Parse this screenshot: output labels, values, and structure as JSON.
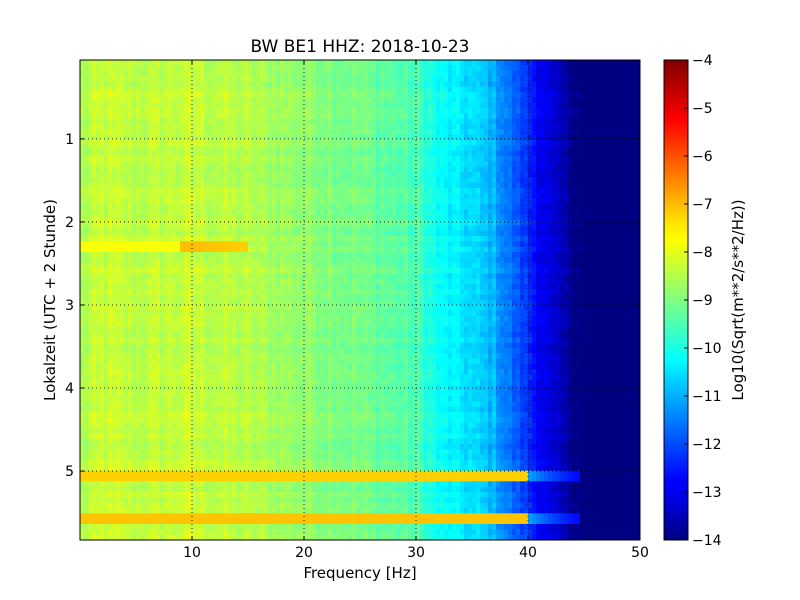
{
  "chart_data": {
    "type": "heatmap",
    "title": "BW BE1 HHZ: 2018-10-23",
    "xlabel": "Frequency [Hz]",
    "ylabel": "Lokalzeit (UTC + 2 Stunde)",
    "xlim": [
      0,
      50
    ],
    "ylim": [
      5.83,
      0.05
    ],
    "y_inverted": true,
    "grid": true,
    "xticks": [
      10,
      20,
      30,
      40,
      50
    ],
    "xtick_labels": [
      "10",
      "20",
      "30",
      "40",
      "50"
    ],
    "yticks": [
      1,
      2,
      3,
      4,
      5
    ],
    "ytick_labels": [
      "1",
      "2",
      "3",
      "4",
      "5"
    ],
    "colormap": "jet",
    "colorbar": {
      "label": "Log10(Sqrt(m**2/s**2/Hz))",
      "range": [
        -14,
        -4
      ],
      "ticks": [
        -4,
        -5,
        -6,
        -7,
        -8,
        -9,
        -10,
        -11,
        -12,
        -13,
        -14
      ],
      "tick_labels": [
        "−4",
        "−5",
        "−6",
        "−7",
        "−8",
        "−9",
        "−10",
        "−11",
        "−12",
        "−13",
        "−14"
      ]
    },
    "frequency_profile": {
      "frequencies_hz": [
        0,
        2,
        5,
        10,
        15,
        20,
        25,
        30,
        32,
        35,
        37,
        38,
        40,
        42,
        44,
        46,
        50
      ],
      "log10_amplitude": [
        -8.6,
        -8.3,
        -8.4,
        -8.3,
        -8.5,
        -8.8,
        -9.1,
        -9.5,
        -10.2,
        -10.6,
        -11.0,
        -11.5,
        -12.3,
        -13.2,
        -13.8,
        -14.0,
        -14.0
      ]
    },
    "annotations": [
      {
        "feature": "strong horizontal band",
        "time": 5.05,
        "freq_range_hz": [
          0,
          46
        ],
        "log10_amplitude_low_freq": -7.6
      },
      {
        "feature": "strong horizontal band",
        "time": 5.55,
        "freq_range_hz": [
          0,
          46
        ],
        "log10_amplitude_low_freq": -7.5
      },
      {
        "feature": "weaker band",
        "time": 2.3,
        "freq_range_hz": [
          0,
          15
        ],
        "log10_amplitude_low_freq": -8.0
      }
    ]
  }
}
